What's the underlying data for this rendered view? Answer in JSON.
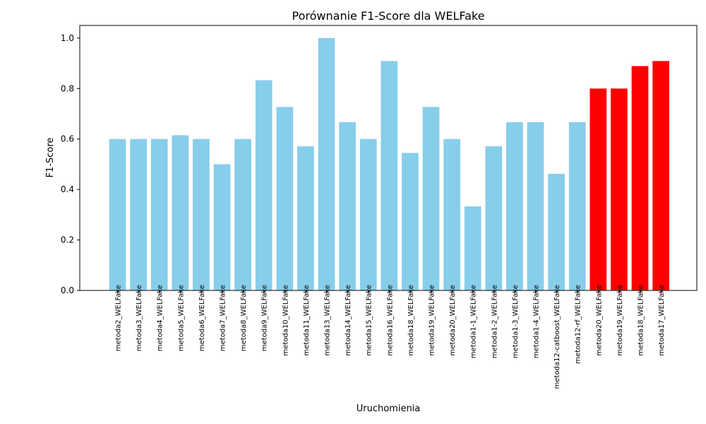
{
  "chart_data": {
    "type": "bar",
    "title": "Porównanie F1-Score dla WELFake",
    "xlabel": "Uruchomienia",
    "ylabel": "F1-Score",
    "ylim": [
      0,
      1.05
    ],
    "yticks": [
      "0.0",
      "0.2",
      "0.4",
      "0.6",
      "0.8",
      "1.0"
    ],
    "grid": false,
    "colors": {
      "default": "#87CEEB",
      "highlight": "#FF0000"
    },
    "categories": [
      "metoda2_WELFake",
      "metoda3_WELFake",
      "metoda4_WELFake",
      "metoda5_WELFake",
      "metoda6_WELFake",
      "metoda7_WELFake",
      "metoda8_WELFake",
      "metoda9_WELFake",
      "metoda10_WELFake",
      "metoda11_WELFake",
      "metoda13_WELFake",
      "metoda14_WELFake",
      "metoda15_WELFake",
      "metoda16_WELFake",
      "metoda18_WELFake",
      "metoda19_WELFake",
      "metoda20_WELFake",
      "metoda1-1_WELFake",
      "metoda1-2_WELFake",
      "metoda1-3_WELFake",
      "metoda1-4_WELFake",
      "metoda12-catboost_WELFake",
      "metoda12-rf_WELFake",
      "metoda20_WELFake",
      "metoda19_WELFake",
      "metoda18_WELFake",
      "metoda17_WELFake"
    ],
    "values": [
      0.6,
      0.6,
      0.6,
      0.615,
      0.6,
      0.5,
      0.6,
      0.833,
      0.727,
      0.571,
      1.0,
      0.667,
      0.6,
      0.909,
      0.545,
      0.727,
      0.6,
      0.333,
      0.571,
      0.667,
      0.667,
      0.462,
      0.667,
      0.8,
      0.8,
      0.889,
      0.909
    ],
    "bar_colors": [
      "#87CEEB",
      "#87CEEB",
      "#87CEEB",
      "#87CEEB",
      "#87CEEB",
      "#87CEEB",
      "#87CEEB",
      "#87CEEB",
      "#87CEEB",
      "#87CEEB",
      "#87CEEB",
      "#87CEEB",
      "#87CEEB",
      "#87CEEB",
      "#87CEEB",
      "#87CEEB",
      "#87CEEB",
      "#87CEEB",
      "#87CEEB",
      "#87CEEB",
      "#87CEEB",
      "#87CEEB",
      "#87CEEB",
      "#FF0000",
      "#FF0000",
      "#FF0000",
      "#FF0000"
    ]
  }
}
